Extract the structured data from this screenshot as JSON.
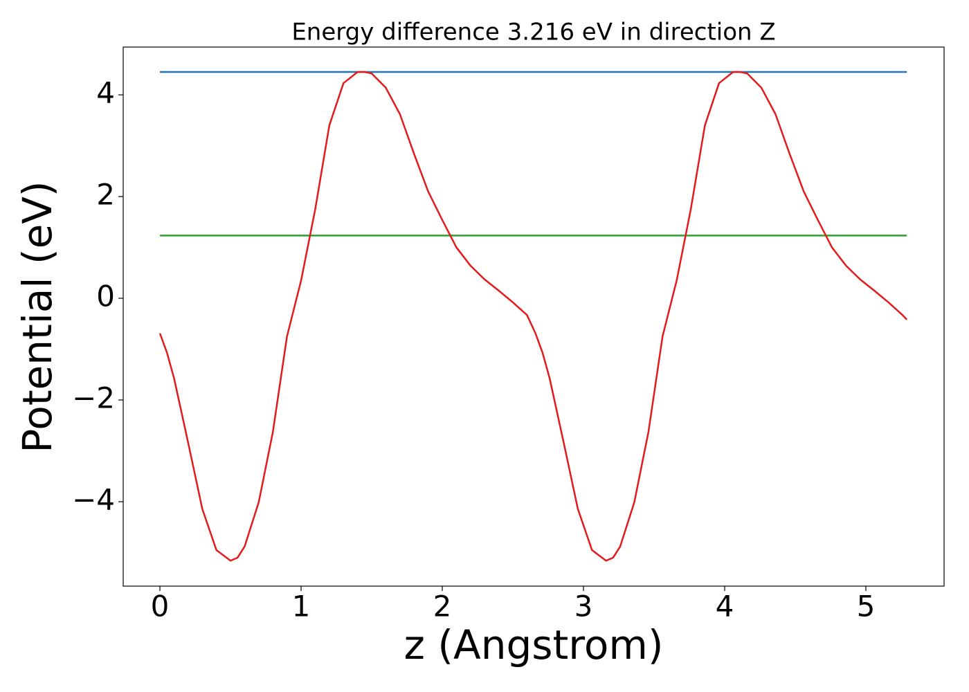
{
  "chart_data": {
    "type": "line",
    "title": "Energy difference 3.216 eV in direction Z",
    "x_label": "z (Angstrom)",
    "y_label": "Potential (eV)",
    "xlim": [
      -0.26,
      5.554
    ],
    "ylim": [
      -5.66,
      4.94
    ],
    "xticks": [
      0,
      1,
      2,
      3,
      4,
      5
    ],
    "yticks": [
      {
        "value": -4,
        "label": "−4"
      },
      {
        "value": -2,
        "label": "−2"
      },
      0,
      2,
      4
    ],
    "series": [
      {
        "color": "#e31a1c",
        "x": [
          0,
          0.05,
          0.1,
          0.2,
          0.3,
          0.4,
          0.5,
          0.55,
          0.6,
          0.7,
          0.8,
          0.9,
          1.0,
          1.1,
          1.2,
          1.3,
          1.4,
          1.45,
          1.5,
          1.6,
          1.7,
          1.8,
          1.9,
          2.0,
          2.1,
          2.2,
          2.3,
          2.4,
          2.5,
          2.6,
          2.66,
          2.71,
          2.76,
          2.86,
          2.96,
          3.06,
          3.16,
          3.21,
          3.26,
          3.36,
          3.46,
          3.56,
          3.66,
          3.76,
          3.86,
          3.96,
          4.06,
          4.11,
          4.16,
          4.26,
          4.36,
          4.46,
          4.56,
          4.66,
          4.76,
          4.86,
          4.96,
          5.06,
          5.16,
          5.26,
          5.29
        ],
        "values": [
          -0.69,
          -1.07,
          -1.57,
          -2.84,
          -4.14,
          -4.95,
          -5.16,
          -5.1,
          -4.88,
          -4.01,
          -2.63,
          -0.75,
          0.35,
          1.75,
          3.4,
          4.23,
          4.45,
          4.45,
          4.42,
          4.14,
          3.62,
          2.84,
          2.1,
          1.54,
          1.0,
          0.64,
          0.37,
          0.15,
          -0.08,
          -0.33,
          -0.69,
          -1.07,
          -1.57,
          -2.84,
          -4.14,
          -4.95,
          -5.16,
          -5.1,
          -4.88,
          -4.01,
          -2.63,
          -0.75,
          0.35,
          1.75,
          3.4,
          4.23,
          4.45,
          4.45,
          4.42,
          4.14,
          3.62,
          2.84,
          2.1,
          1.54,
          1.0,
          0.64,
          0.37,
          0.15,
          -0.08,
          -0.33,
          -0.42
        ]
      },
      {
        "color": "#1f77b4",
        "x": [
          0,
          5.29
        ],
        "values": [
          4.45,
          4.45
        ]
      },
      {
        "color": "#2ca02c",
        "x": [
          0,
          5.29
        ],
        "values": [
          1.234,
          1.234
        ]
      }
    ]
  }
}
